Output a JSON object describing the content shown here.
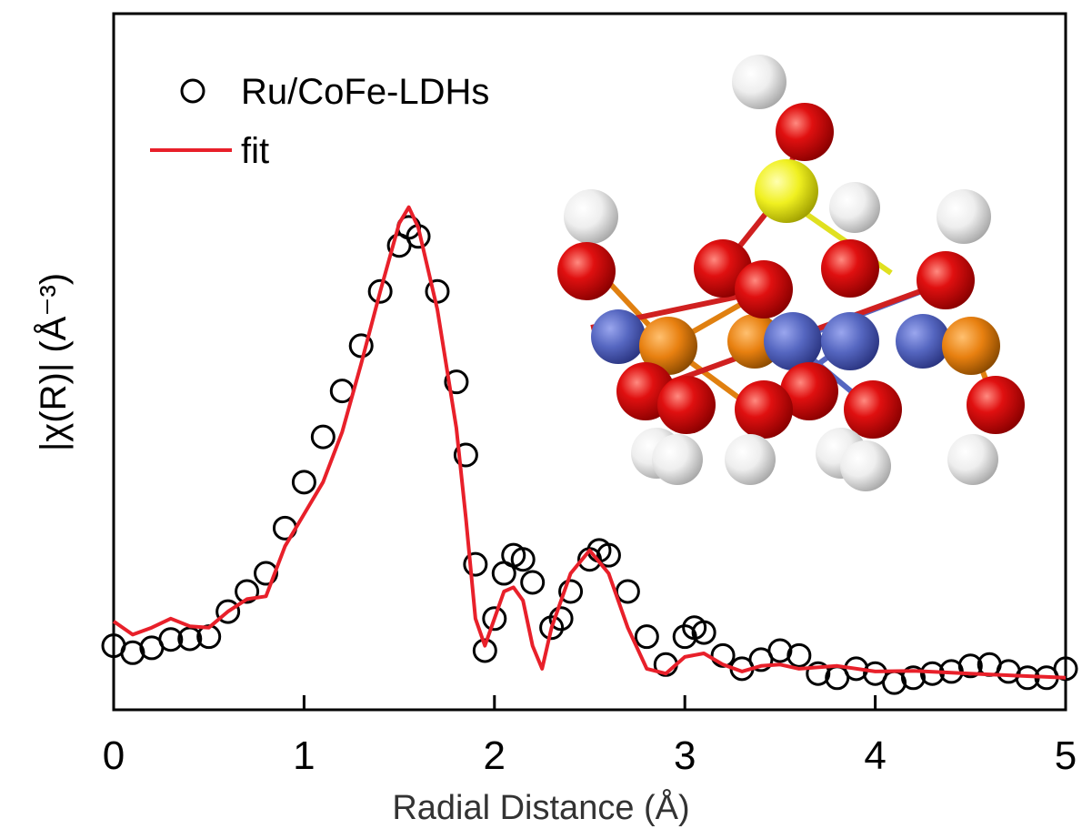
{
  "chart_data": {
    "type": "line",
    "xlabel": "Radial Distance (Å)",
    "ylabel": "|χ(R)| (Å⁻³)",
    "xlim": [
      0,
      5
    ],
    "xticks": [
      0,
      1,
      2,
      3,
      4,
      5
    ],
    "ylim": [
      0,
      100
    ],
    "legend": "upper left",
    "series": [
      {
        "name": "Ru/CoFe-LDHs",
        "style": "markers",
        "color": "#000000",
        "x": [
          0,
          0.1,
          0.2,
          0.3,
          0.4,
          0.5,
          0.6,
          0.7,
          0.8,
          0.9,
          1.0,
          1.1,
          1.2,
          1.3,
          1.4,
          1.5,
          1.55,
          1.6,
          1.7,
          1.8,
          1.85,
          1.9,
          1.95,
          2.0,
          2.05,
          2.1,
          2.15,
          2.2,
          2.3,
          2.35,
          2.4,
          2.5,
          2.55,
          2.6,
          2.7,
          2.8,
          2.9,
          3.0,
          3.05,
          3.1,
          3.2,
          3.3,
          3.4,
          3.5,
          3.6,
          3.7,
          3.8,
          3.9,
          4.0,
          4.1,
          4.2,
          4.3,
          4.4,
          4.5,
          4.6,
          4.7,
          4.8,
          4.9,
          5.0
        ],
        "values": [
          9.2,
          8.2,
          8.9,
          10.1,
          10.2,
          10.5,
          14.1,
          17.0,
          19.6,
          26.1,
          32.7,
          39.2,
          45.8,
          52.3,
          60.1,
          66.7,
          69.3,
          68.0,
          60.1,
          47.1,
          36.6,
          20.9,
          8.5,
          13.1,
          19.6,
          22.2,
          21.6,
          18.3,
          11.8,
          13.1,
          17.0,
          21.6,
          22.9,
          22.2,
          17.0,
          10.5,
          6.5,
          10.5,
          11.8,
          11.1,
          7.8,
          5.9,
          7.2,
          8.5,
          7.8,
          5.2,
          4.6,
          5.9,
          5.2,
          3.9,
          4.6,
          5.2,
          5.5,
          6.3,
          6.5,
          5.5,
          4.6,
          4.6,
          5.9
        ]
      },
      {
        "name": "fit",
        "style": "line",
        "color": "#e8202a",
        "x": [
          0,
          0.1,
          0.2,
          0.3,
          0.4,
          0.5,
          0.6,
          0.7,
          0.8,
          0.9,
          1.0,
          1.1,
          1.2,
          1.3,
          1.4,
          1.5,
          1.55,
          1.6,
          1.7,
          1.8,
          1.85,
          1.9,
          1.95,
          2.0,
          2.05,
          2.1,
          2.15,
          2.2,
          2.25,
          2.3,
          2.4,
          2.5,
          2.6,
          2.7,
          2.8,
          2.9,
          3.0,
          3.1,
          3.2,
          3.3,
          3.4,
          3.5,
          3.6,
          3.8,
          4.0,
          4.2,
          4.5,
          5.0
        ],
        "values": [
          12.7,
          10.8,
          11.8,
          13.1,
          12.0,
          11.8,
          14.1,
          15.9,
          16.3,
          23.5,
          28.1,
          32.7,
          39.9,
          49.7,
          60.1,
          69.9,
          72.2,
          69.3,
          57.5,
          40.5,
          27.5,
          13.1,
          9.2,
          13.1,
          17.0,
          17.6,
          15.7,
          9.2,
          5.9,
          11.8,
          19.6,
          22.9,
          19.6,
          11.8,
          5.9,
          5.2,
          7.6,
          8.1,
          6.5,
          5.5,
          6.3,
          6.5,
          5.9,
          6.3,
          5.5,
          5.6,
          5.2,
          4.6
        ]
      }
    ]
  }
}
